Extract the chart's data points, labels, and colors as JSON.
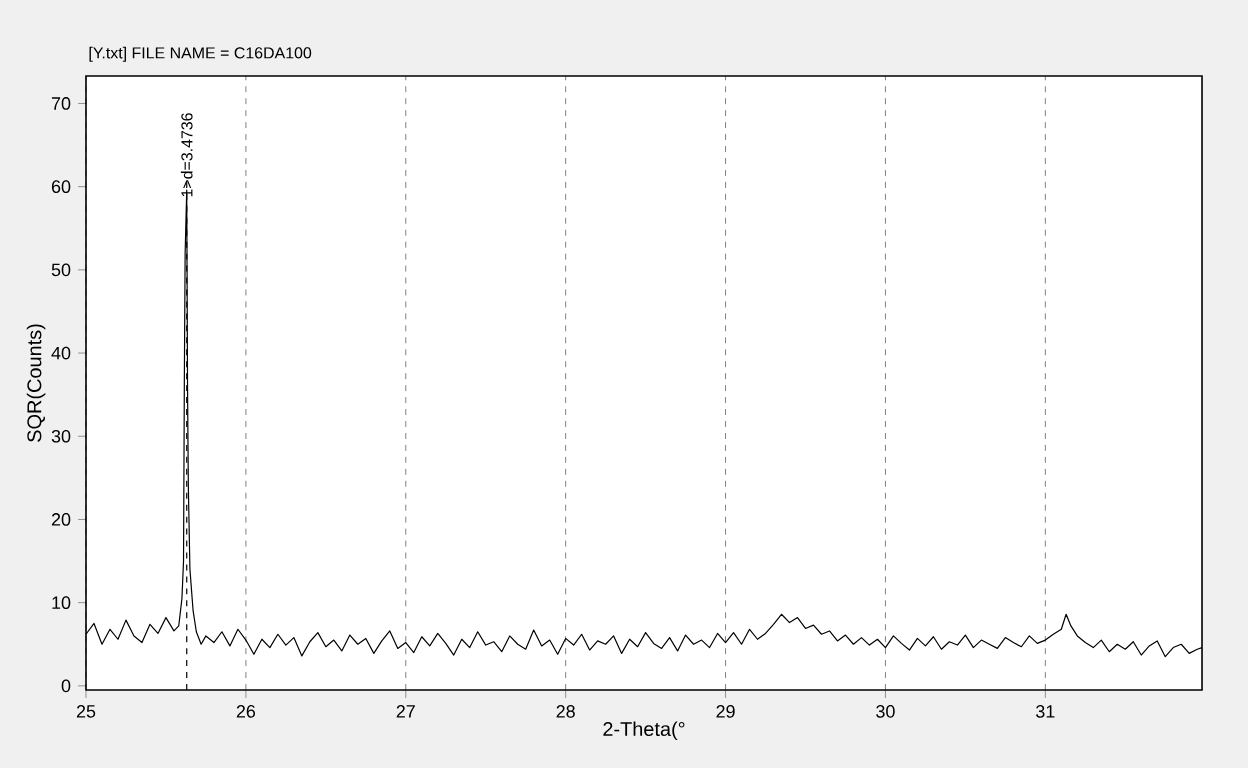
{
  "chart_data": {
    "type": "line",
    "title": "[Y.txt] FILE NAME   = C16DA100",
    "xlabel": "2-Theta(°",
    "ylabel": "SQR(Counts)",
    "xlim": [
      25,
      31.98
    ],
    "ylim": [
      -0.5,
      73.3
    ],
    "xticks": [
      25,
      26,
      27,
      28,
      29,
      30,
      31
    ],
    "yticks": [
      0,
      10,
      20,
      30,
      40,
      50,
      60,
      70
    ],
    "grid": "x",
    "marker": "none",
    "line_style": "solid",
    "ref_lines": [
      {
        "axis": "x",
        "value": 25.63,
        "color": "#000000",
        "line_style": "dashed"
      }
    ],
    "annotations": [
      {
        "text": "1>d=3.4736",
        "x": 25.63,
        "y": 59.6
      }
    ],
    "series": [
      {
        "color": "#000000",
        "x": [
          25.0,
          25.05,
          25.1,
          25.15,
          25.2,
          25.25,
          25.3,
          25.35,
          25.4,
          25.45,
          25.5,
          25.55,
          25.58,
          25.6,
          25.61,
          25.615,
          25.62,
          25.63,
          25.635,
          25.64,
          25.65,
          25.67,
          25.69,
          25.72,
          25.75,
          25.8,
          25.85,
          25.9,
          25.95,
          26.0,
          26.05,
          26.1,
          26.15,
          26.2,
          26.25,
          26.3,
          26.35,
          26.4,
          26.45,
          26.5,
          26.55,
          26.6,
          26.65,
          26.7,
          26.75,
          26.8,
          26.85,
          26.9,
          26.95,
          27.0,
          27.05,
          27.1,
          27.15,
          27.2,
          27.25,
          27.3,
          27.35,
          27.4,
          27.45,
          27.5,
          27.55,
          27.6,
          27.65,
          27.7,
          27.75,
          27.8,
          27.85,
          27.9,
          27.95,
          28.0,
          28.05,
          28.1,
          28.15,
          28.2,
          28.25,
          28.3,
          28.35,
          28.4,
          28.45,
          28.5,
          28.55,
          28.6,
          28.65,
          28.7,
          28.75,
          28.8,
          28.85,
          28.9,
          28.95,
          29.0,
          29.05,
          29.1,
          29.15,
          29.2,
          29.25,
          29.3,
          29.35,
          29.4,
          29.45,
          29.5,
          29.55,
          29.6,
          29.65,
          29.7,
          29.75,
          29.8,
          29.85,
          29.9,
          29.95,
          30.0,
          30.05,
          30.1,
          30.15,
          30.2,
          30.25,
          30.3,
          30.35,
          30.4,
          30.45,
          30.5,
          30.55,
          30.6,
          30.65,
          30.7,
          30.75,
          30.8,
          30.85,
          30.9,
          30.95,
          31.0,
          31.05,
          31.1,
          31.13,
          31.16,
          31.2,
          31.25,
          31.3,
          31.35,
          31.4,
          31.45,
          31.5,
          31.55,
          31.6,
          31.65,
          31.7,
          31.75,
          31.8,
          31.85,
          31.9,
          31.95,
          31.98
        ],
        "values": [
          6.2,
          7.5,
          5.0,
          6.8,
          5.6,
          7.9,
          6.0,
          5.2,
          7.4,
          6.3,
          8.2,
          6.6,
          7.2,
          10.5,
          15,
          36.5,
          52.0,
          59.6,
          36.0,
          24,
          14,
          9,
          6.5,
          5.0,
          6.0,
          5.2,
          6.5,
          4.8,
          6.8,
          5.5,
          3.8,
          5.6,
          4.6,
          6.2,
          4.9,
          5.8,
          3.6,
          5.3,
          6.4,
          4.7,
          5.5,
          4.2,
          6.1,
          5.0,
          5.7,
          3.9,
          5.4,
          6.6,
          4.5,
          5.2,
          4.0,
          5.9,
          4.8,
          6.3,
          5.1,
          3.7,
          5.6,
          4.6,
          6.5,
          4.9,
          5.3,
          4.1,
          6.0,
          5.0,
          4.4,
          6.7,
          4.8,
          5.5,
          3.8,
          5.7,
          4.9,
          6.2,
          4.3,
          5.4,
          5.0,
          6.0,
          3.9,
          5.6,
          4.7,
          6.4,
          5.1,
          4.5,
          5.8,
          4.2,
          6.1,
          5.0,
          5.5,
          4.6,
          6.3,
          5.2,
          6.4,
          5.0,
          6.8,
          5.6,
          6.3,
          7.4,
          8.6,
          7.6,
          8.2,
          6.9,
          7.3,
          6.2,
          6.6,
          5.4,
          6.1,
          5.0,
          5.8,
          4.9,
          5.6,
          4.6,
          6.0,
          5.1,
          4.3,
          5.7,
          4.8,
          5.9,
          4.4,
          5.3,
          4.9,
          6.1,
          4.6,
          5.5,
          5.0,
          4.5,
          5.8,
          5.2,
          4.7,
          6.0,
          5.1,
          5.5,
          6.2,
          6.8,
          8.6,
          7.2,
          6.0,
          5.2,
          4.6,
          5.5,
          4.1,
          5.0,
          4.4,
          5.3,
          3.7,
          4.8,
          5.4,
          3.5,
          4.6,
          5.0,
          3.9,
          4.4,
          4.6
        ]
      }
    ]
  }
}
